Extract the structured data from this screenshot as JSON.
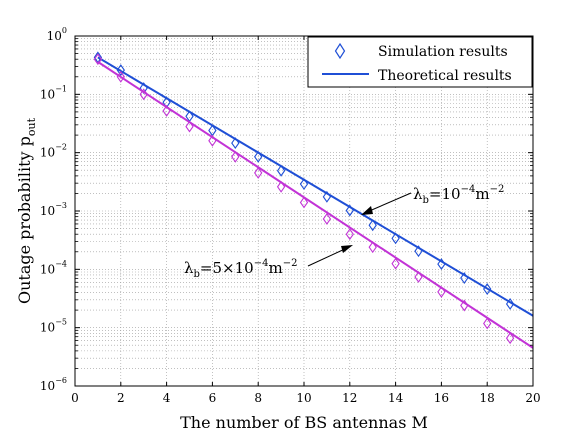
{
  "chart_data": {
    "type": "line",
    "xlabel": "The number of BS antennas M",
    "ylabel": "Outage probability p",
    "ylabel_subscript": "out",
    "xlim": [
      0,
      20
    ],
    "ylim": [
      1e-06,
      1
    ],
    "yscale": "log",
    "grid": "dotted",
    "legend_position": "top-right",
    "x_ticks": [
      "0",
      "2",
      "4",
      "6",
      "8",
      "10",
      "12",
      "14",
      "16",
      "18",
      "20"
    ],
    "y_ticks": [
      {
        "base": "10",
        "exp": "0"
      },
      {
        "base": "10",
        "exp": "−1"
      },
      {
        "base": "10",
        "exp": "−2"
      },
      {
        "base": "10",
        "exp": "−3"
      },
      {
        "base": "10",
        "exp": "−4"
      },
      {
        "base": "10",
        "exp": "−5"
      },
      {
        "base": "10",
        "exp": "−6"
      }
    ],
    "legend": {
      "simulation": "Simulation results",
      "theoretical": "Theoretical results"
    },
    "series": [
      {
        "key": "lambda_1e-4",
        "color": "#1f4fd6",
        "theory": {
          "x": [
            1,
            20
          ],
          "y": [
            0.43,
            1.6e-05
          ]
        },
        "simulation": {
          "x": [
            1,
            2,
            3,
            4,
            5,
            6,
            7,
            8,
            9,
            10,
            11,
            12,
            13,
            14,
            15,
            16,
            17,
            18,
            19
          ],
          "y": [
            0.43,
            0.26,
            0.128,
            0.073,
            0.042,
            0.024,
            0.0146,
            0.0085,
            0.0049,
            0.0029,
            0.00175,
            0.00102,
            0.00057,
            0.00034,
            0.000205,
            0.000123,
            7.1e-05,
            4.6e-05,
            2.55e-05
          ]
        }
      },
      {
        "key": "lambda_5e-4",
        "color": "#c233d6",
        "theory": {
          "x": [
            1,
            20
          ],
          "y": [
            0.36,
            4.5e-06
          ]
        },
        "simulation": {
          "x": [
            1,
            2,
            3,
            4,
            5,
            6,
            7,
            8,
            9,
            10,
            11,
            12,
            13,
            14,
            15,
            16,
            17,
            18,
            19
          ],
          "y": [
            0.4,
            0.2,
            0.1,
            0.052,
            0.028,
            0.016,
            0.0085,
            0.0045,
            0.0026,
            0.0014,
            0.00073,
            0.0004,
            0.00024,
            0.000125,
            7.4e-05,
            4.1e-05,
            2.4e-05,
            1.18e-05,
            6.6e-06
          ]
        }
      }
    ],
    "annotations": [
      {
        "prefix": "λ",
        "sub": "b",
        "text": "=10",
        "exp": "−4",
        "unit": "m",
        "unit_exp": "−2",
        "points_to": {
          "x": 12.3,
          "y": 0.00085
        }
      },
      {
        "prefix": "λ",
        "sub": "b",
        "text": "=5×10",
        "exp": "−4",
        "unit": "m",
        "unit_exp": "−2",
        "points_to": {
          "x": 11.9,
          "y": 0.0003
        }
      }
    ]
  }
}
